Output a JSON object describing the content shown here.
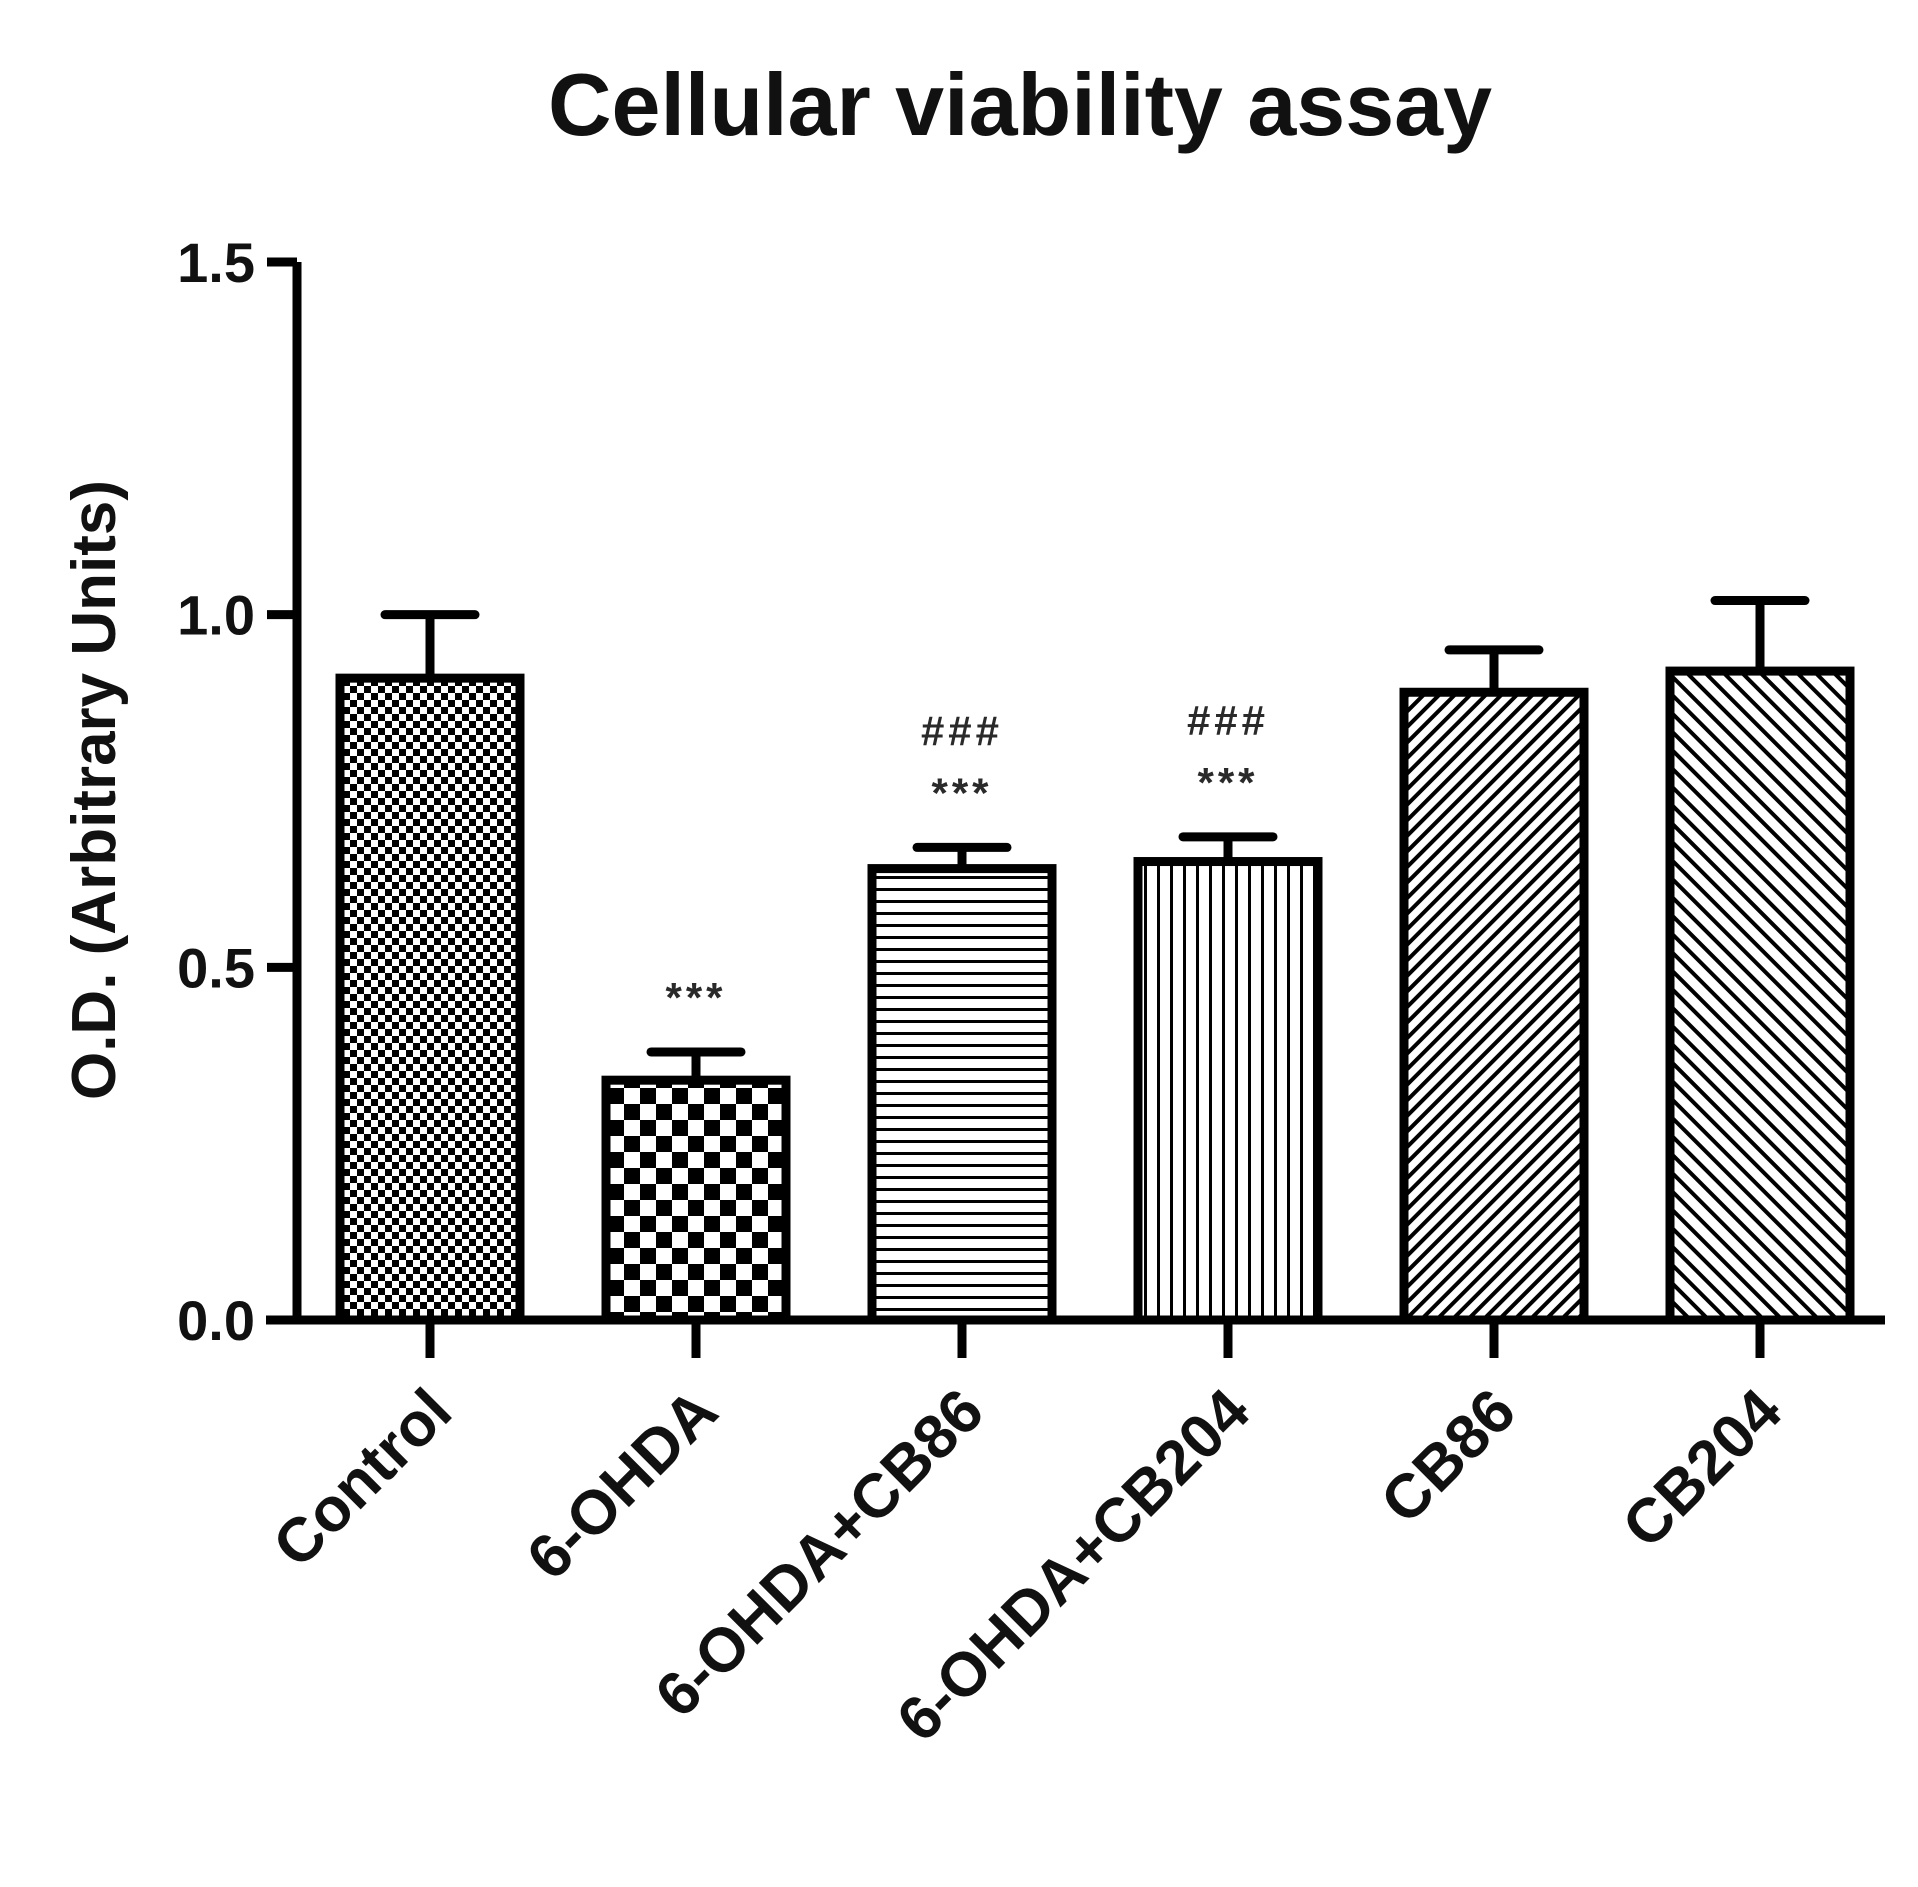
{
  "chart_data": {
    "type": "bar",
    "title": "Cellular viability assay",
    "xlabel": "",
    "ylabel": "O.D. (Arbitrary Units)",
    "ylim": [
      0,
      1.5
    ],
    "yticks": [
      "0.0",
      "0.5",
      "1.0",
      "1.5"
    ],
    "categories": [
      "Control",
      "6-OHDA",
      "6-OHDA+CB86",
      "6-OHDA+CB204",
      "CB86",
      "CB204"
    ],
    "values": [
      0.91,
      0.34,
      0.64,
      0.65,
      0.89,
      0.92
    ],
    "errors": [
      0.09,
      0.04,
      0.03,
      0.035,
      0.06,
      0.1
    ],
    "patterns": [
      "fine-checker",
      "coarse-checker",
      "horizontal-lines",
      "vertical-lines",
      "diagonal-dense",
      "diagonal-sparse"
    ],
    "annotations": [
      {
        "category": "6-OHDA",
        "lines": [
          "***"
        ]
      },
      {
        "category": "6-OHDA+CB86",
        "lines": [
          "###",
          "***"
        ]
      },
      {
        "category": "6-OHDA+CB204",
        "lines": [
          "###",
          "***"
        ]
      }
    ],
    "grid": false,
    "legend": "none",
    "colors": {
      "bar_stroke": "#000000",
      "fill": "#000000",
      "background": "#ffffff",
      "annotation": "#2a2a2a"
    }
  }
}
